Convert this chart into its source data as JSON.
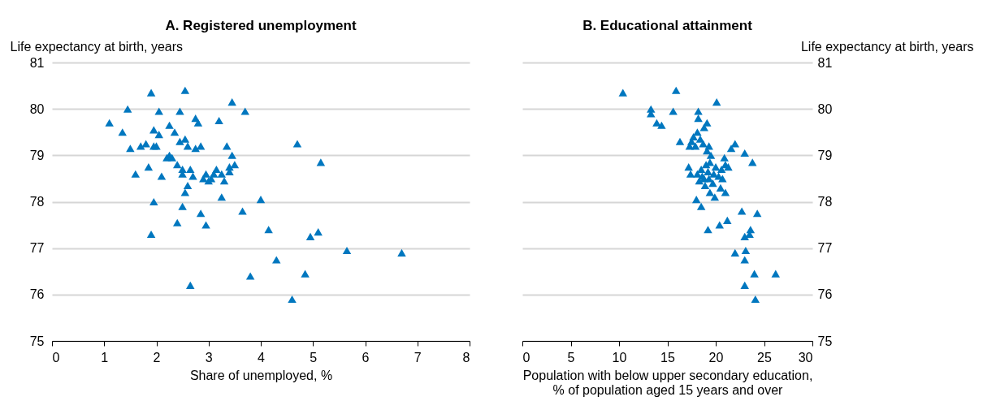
{
  "chart_data": [
    {
      "type": "scatter",
      "title": "A. Registered unemployment",
      "xlabel": "Share of unemployed, %",
      "ylabel": "Life expectancy at birth, years",
      "xlim": [
        0,
        8
      ],
      "xticks": [
        0,
        1,
        2,
        3,
        4,
        5,
        6,
        7,
        8
      ],
      "ylim": [
        75,
        81
      ],
      "yticks": [
        75,
        76,
        77,
        78,
        79,
        80,
        81
      ],
      "grid": "y",
      "marker": "triangle",
      "series": [
        {
          "color": "#0077bf",
          "x": [
            1.1,
            1.35,
            1.45,
            1.5,
            1.6,
            1.7,
            1.8,
            1.9,
            1.85,
            1.95,
            1.95,
            2.0,
            1.95,
            1.9,
            2.05,
            2.05,
            2.1,
            2.25,
            2.25,
            2.35,
            2.4,
            2.4,
            2.5,
            2.45,
            2.45,
            2.5,
            2.55,
            2.55,
            2.65,
            2.6,
            2.5,
            2.55,
            2.6,
            2.75,
            2.8,
            2.85,
            2.85,
            2.9,
            2.95,
            2.95,
            3.0,
            3.05,
            3.1,
            3.15,
            3.2,
            3.25,
            3.25,
            3.3,
            3.35,
            3.4,
            3.45,
            3.45,
            3.5,
            3.7,
            3.65,
            4.0,
            4.15,
            4.3,
            3.8,
            2.65,
            4.6,
            4.7,
            4.85,
            4.95,
            5.1,
            5.15,
            5.65,
            6.7,
            2.3,
            2.75,
            2.7,
            3.4,
            2.2
          ],
          "values": [
            79.7,
            79.5,
            80.0,
            79.15,
            78.6,
            79.2,
            79.25,
            80.35,
            78.75,
            79.55,
            79.2,
            79.2,
            78.0,
            77.3,
            79.95,
            79.45,
            78.55,
            79.65,
            79.0,
            79.5,
            77.55,
            78.8,
            78.6,
            79.95,
            79.3,
            78.7,
            80.4,
            79.35,
            78.7,
            79.2,
            77.9,
            78.2,
            78.35,
            79.8,
            79.7,
            79.2,
            77.75,
            78.5,
            77.5,
            78.6,
            78.45,
            78.5,
            78.6,
            78.7,
            79.75,
            78.6,
            78.1,
            78.45,
            79.2,
            78.65,
            79.0,
            80.15,
            78.8,
            79.95,
            77.8,
            78.05,
            77.4,
            76.75,
            76.4,
            76.2,
            75.9,
            79.25,
            76.45,
            77.25,
            77.35,
            78.85,
            76.95,
            76.9,
            78.95,
            79.15,
            78.55,
            78.75,
            78.95
          ]
        }
      ]
    },
    {
      "type": "scatter",
      "title": "B. Educational attainment",
      "xlabel": "Population with below upper secondary education, % of population aged 15 years and over",
      "ylabel": "Life expectancy at birth, years",
      "xlim": [
        0,
        30
      ],
      "xticks": [
        0,
        5,
        10,
        15,
        20,
        25,
        30
      ],
      "ylim": [
        75,
        81
      ],
      "yticks": [
        75,
        76,
        77,
        78,
        79,
        80,
        81
      ],
      "grid": "y",
      "marker": "triangle",
      "series": [
        {
          "color": "#0077bf",
          "x": [
            10.4,
            13.3,
            13.3,
            13.9,
            14.4,
            15.6,
            15.9,
            16.3,
            17.2,
            17.3,
            17.4,
            17.5,
            17.7,
            17.9,
            18.0,
            18.1,
            18.2,
            18.2,
            18.1,
            18.3,
            18.4,
            18.5,
            18.5,
            18.7,
            18.8,
            18.8,
            18.9,
            19.0,
            19.1,
            19.1,
            19.2,
            19.3,
            19.3,
            19.4,
            19.4,
            19.2,
            19.5,
            19.7,
            19.9,
            20.0,
            20.1,
            20.3,
            20.5,
            20.4,
            20.6,
            20.7,
            20.9,
            21.0,
            21.0,
            21.2,
            21.3,
            21.6,
            22.0,
            22.0,
            22.7,
            23.0,
            23.1,
            23.0,
            23.0,
            23.0,
            23.5,
            23.6,
            23.8,
            24.0,
            24.1,
            24.3,
            26.2,
            18.6,
            19.8
          ],
          "values": [
            80.35,
            80.0,
            79.9,
            79.7,
            79.65,
            79.95,
            80.4,
            79.3,
            78.75,
            79.2,
            78.6,
            79.3,
            79.4,
            79.2,
            78.05,
            79.5,
            79.95,
            79.8,
            78.6,
            78.45,
            79.35,
            78.7,
            77.9,
            79.25,
            78.5,
            79.6,
            78.35,
            78.8,
            79.7,
            79.1,
            78.65,
            78.5,
            79.2,
            78.2,
            78.85,
            77.4,
            79.0,
            78.4,
            78.1,
            78.75,
            80.15,
            78.55,
            78.3,
            77.5,
            78.7,
            78.5,
            78.95,
            78.8,
            78.2,
            77.6,
            78.75,
            79.15,
            79.25,
            76.9,
            77.8,
            79.05,
            76.95,
            77.25,
            76.75,
            76.2,
            77.3,
            77.4,
            78.85,
            76.45,
            75.9,
            77.75,
            76.45,
            78.55,
            78.6
          ]
        }
      ]
    }
  ]
}
